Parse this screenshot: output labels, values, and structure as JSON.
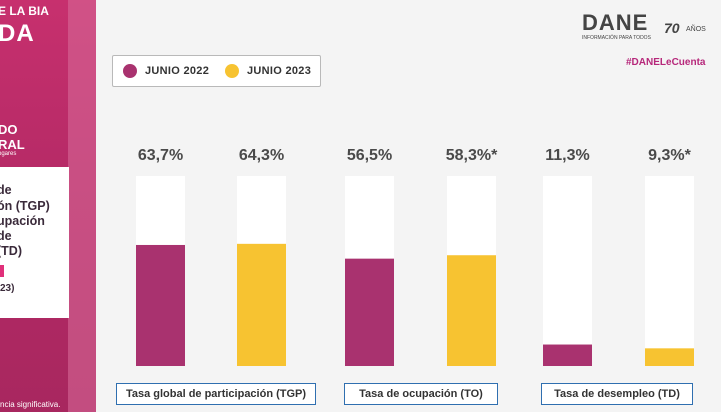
{
  "sidebar": {
    "header_line1": "BIA",
    "header_line1_prefix": "E LA",
    "header_line2": "DA",
    "subtitle1": "DO",
    "subtitle2": "RAL",
    "subtitle3": "ogares",
    "card_lines": [
      " de",
      "ón (TGP)",
      "upación",
      " de",
      "(TD)"
    ],
    "card_year": "23)",
    "footer": "ncia significativa."
  },
  "logo": {
    "name": "DANE",
    "tagline": "INFORMACIÓN PARA TODOS",
    "years": "70",
    "years_suffix": "AÑOS"
  },
  "hashtag": "#DANELeCuenta",
  "colors": {
    "series1": "#a9326f",
    "series2": "#f7c331",
    "track": "#ffffff",
    "accent": "#c7306e",
    "category_border": "#2f6fb0"
  },
  "chart_data": {
    "type": "bar",
    "series": [
      {
        "name": "JUNIO 2022",
        "values": [
          63.7,
          56.5,
          11.3
        ],
        "labels": [
          "63,7%",
          "56,5%",
          "11,3%"
        ]
      },
      {
        "name": "JUNIO 2023",
        "values": [
          64.3,
          58.3,
          9.3
        ],
        "labels": [
          "64,3%",
          "58,3%*",
          "9,3%*"
        ]
      }
    ],
    "categories": [
      "Tasa global de participación (TGP)",
      "Tasa de ocupación (TO)",
      "Tasa de desempleo (TD)"
    ],
    "ylim": [
      0,
      100
    ],
    "legend_position": "top-left",
    "grid": false
  }
}
